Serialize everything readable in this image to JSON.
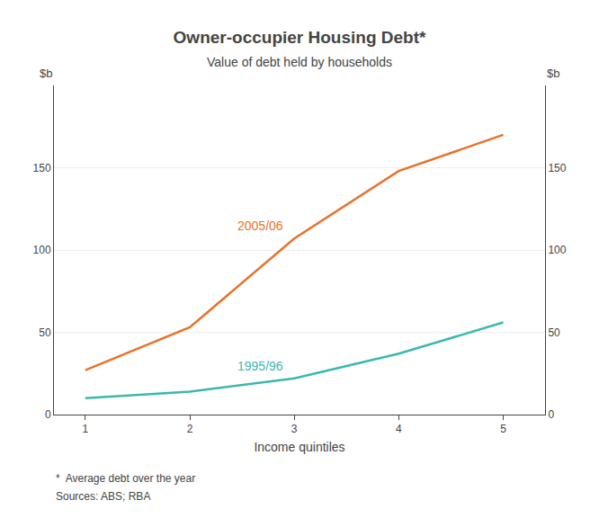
{
  "chart_data": {
    "type": "line",
    "title": "Owner-occupier Housing Debt*",
    "subtitle": "Value of debt held by households",
    "xlabel": "Income quintiles",
    "ylabel": "$b",
    "y2label": "$b",
    "footnotes": [
      "*  Average debt over the year",
      "Sources: ABS; RBA"
    ],
    "x": [
      1,
      2,
      3,
      4,
      5
    ],
    "series": [
      {
        "name": "2005/06",
        "color": "#E8722A",
        "values": [
          27,
          53,
          107,
          148,
          170
        ]
      },
      {
        "name": "1995/96",
        "color": "#3AB8B0",
        "values": [
          10,
          14,
          22,
          37,
          56
        ]
      }
    ],
    "xlim": [
      0.7,
      5.4
    ],
    "xticks": [
      1,
      2,
      3,
      4,
      5
    ],
    "ylim": [
      0,
      200
    ],
    "yticks": [
      0,
      50,
      100,
      150
    ],
    "y2lim": [
      0,
      200
    ],
    "y2ticks": [
      0,
      50,
      100,
      150
    ],
    "grid": true
  }
}
